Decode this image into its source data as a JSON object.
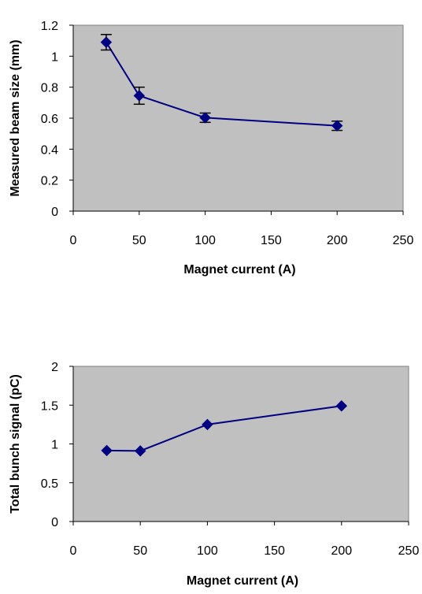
{
  "chart_data": [
    {
      "type": "line",
      "title": "",
      "xlabel": "Magnet current (A)",
      "ylabel": "Measured beam size (mm)",
      "xlim": [
        0,
        250
      ],
      "ylim": [
        0,
        1.2
      ],
      "x_ticks": [
        "0",
        "50",
        "100",
        "150",
        "200",
        "250"
      ],
      "y_ticks": [
        "0",
        "0.2",
        "0.4",
        "0.6",
        "0.8",
        "1",
        "1.2"
      ],
      "grid": false,
      "plot_background": "#c0c0c0",
      "series_color": "#000080",
      "marker": "diamond",
      "series": [
        {
          "x": [
            25,
            50,
            100,
            200
          ],
          "y": [
            1.09,
            0.745,
            0.603,
            0.551
          ],
          "error": [
            0.05,
            0.055,
            0.03,
            0.03
          ]
        }
      ]
    },
    {
      "type": "line",
      "title": "",
      "xlabel": "Magnet current (A)",
      "ylabel": "Total bunch signal (pC)",
      "xlim": [
        0,
        250
      ],
      "ylim": [
        0,
        2
      ],
      "x_ticks": [
        "0",
        "50",
        "100",
        "150",
        "200",
        "250"
      ],
      "y_ticks": [
        "0",
        "0.5",
        "1",
        "1.5",
        "2"
      ],
      "grid": false,
      "plot_background": "#c0c0c0",
      "series_color": "#000080",
      "marker": "diamond",
      "series": [
        {
          "x": [
            25,
            50,
            100,
            200
          ],
          "y": [
            0.915,
            0.91,
            1.25,
            1.49
          ]
        }
      ]
    }
  ]
}
